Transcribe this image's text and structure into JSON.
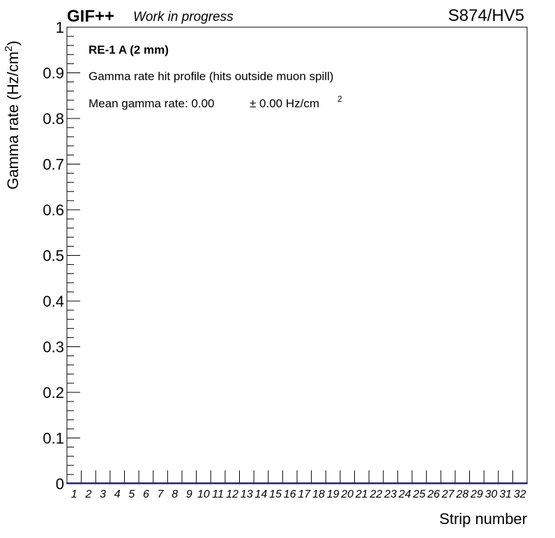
{
  "header": {
    "experiment": "GIF++",
    "status": "Work in progress",
    "run": "S874/HV5"
  },
  "annotations": {
    "detector": "RE-1 A (2 mm)",
    "description": "Gamma rate hit profile (hits outside muon spill)",
    "mean_prefix": "Mean gamma rate: 0.00",
    "mean_error": "± 0.00 Hz/cm",
    "mean_error_sup": "2"
  },
  "chart_data": {
    "type": "bar",
    "xlabel": "Strip number",
    "ylabel_main": "Gamma rate (Hz/cm",
    "ylabel_sup": "2",
    "ylabel_close": ")",
    "ylim": [
      0,
      1
    ],
    "yticks": [
      "0",
      "0.1",
      "0.2",
      "0.3",
      "0.4",
      "0.5",
      "0.6",
      "0.7",
      "0.8",
      "0.9",
      "1"
    ],
    "categories": [
      "1",
      "2",
      "3",
      "4",
      "5",
      "6",
      "7",
      "8",
      "9",
      "10",
      "11",
      "12",
      "13",
      "14",
      "15",
      "16",
      "17",
      "18",
      "19",
      "20",
      "21",
      "22",
      "23",
      "24",
      "25",
      "26",
      "27",
      "28",
      "29",
      "30",
      "31",
      "32"
    ],
    "values": [
      0,
      0,
      0,
      0,
      0,
      0,
      0,
      0,
      0,
      0,
      0,
      0,
      0,
      0,
      0,
      0,
      0,
      0,
      0,
      0,
      0,
      0,
      0,
      0,
      0,
      0,
      0,
      0,
      0,
      0,
      0,
      0
    ],
    "line_color": "#1a237e",
    "grid": false
  }
}
